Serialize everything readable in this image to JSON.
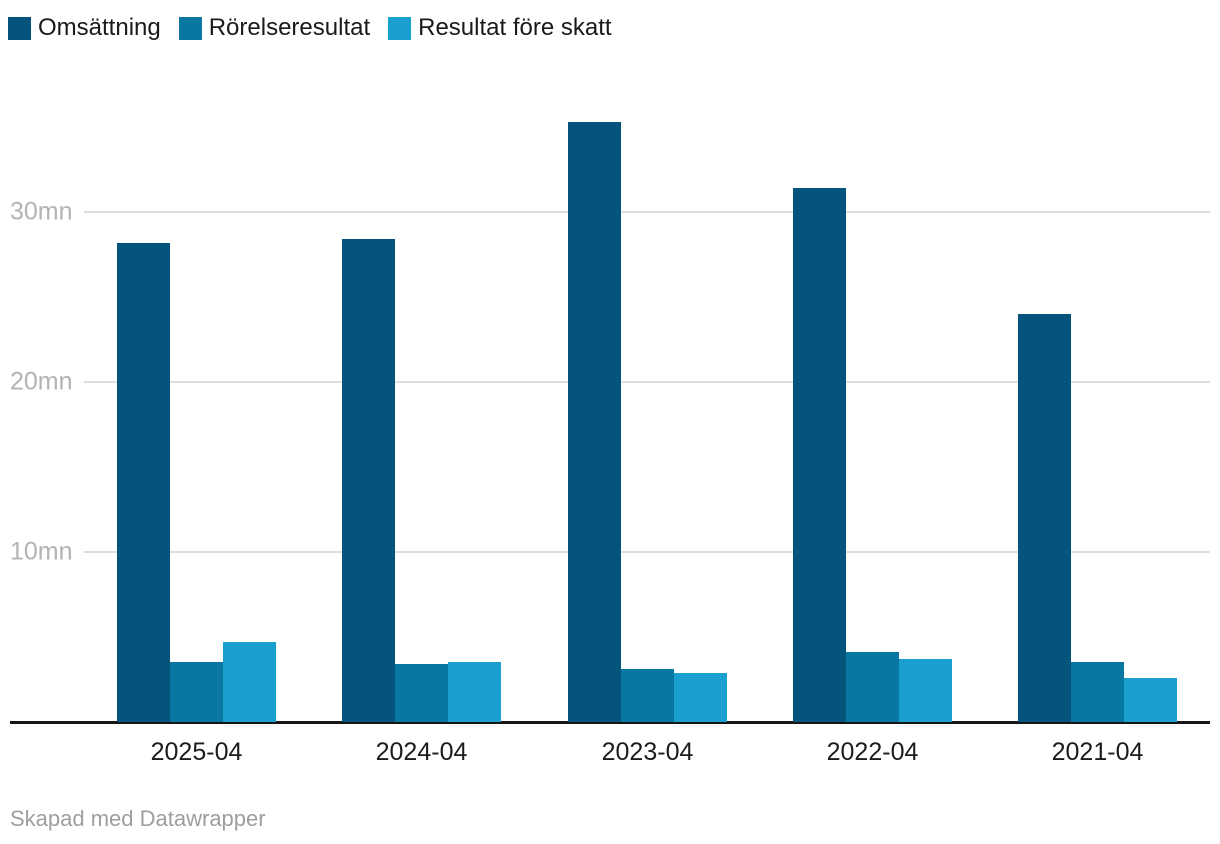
{
  "chart_data": {
    "type": "bar",
    "title": "",
    "categories": [
      "2025-04",
      "2024-04",
      "2023-04",
      "2022-04",
      "2021-04"
    ],
    "series": [
      {
        "name": "Omsättning",
        "color": "#04547c",
        "values": [
          28.2,
          28.4,
          35.3,
          31.4,
          24.0
        ]
      },
      {
        "name": "Rörelseresultat",
        "color": "#0878a3",
        "values": [
          3.5,
          3.4,
          3.1,
          4.1,
          3.5
        ]
      },
      {
        "name": "Resultat före skatt",
        "color": "#1aa0cf",
        "values": [
          4.7,
          3.5,
          2.9,
          3.7,
          2.6
        ]
      }
    ],
    "unit": "mn",
    "yticks": [
      10,
      20,
      30
    ],
    "ytick_labels": [
      "10mn",
      "20mn",
      "30mn"
    ],
    "ylim": [
      0,
      36.4
    ],
    "grid": true,
    "legend_position": "top-left",
    "axis_color": "#161616",
    "gridline_color": "#dedede",
    "ytick_color": "#b3b3b3",
    "xlabel_color": "#1c1c1c"
  },
  "footer": {
    "credit": "Skapad med Datawrapper"
  }
}
